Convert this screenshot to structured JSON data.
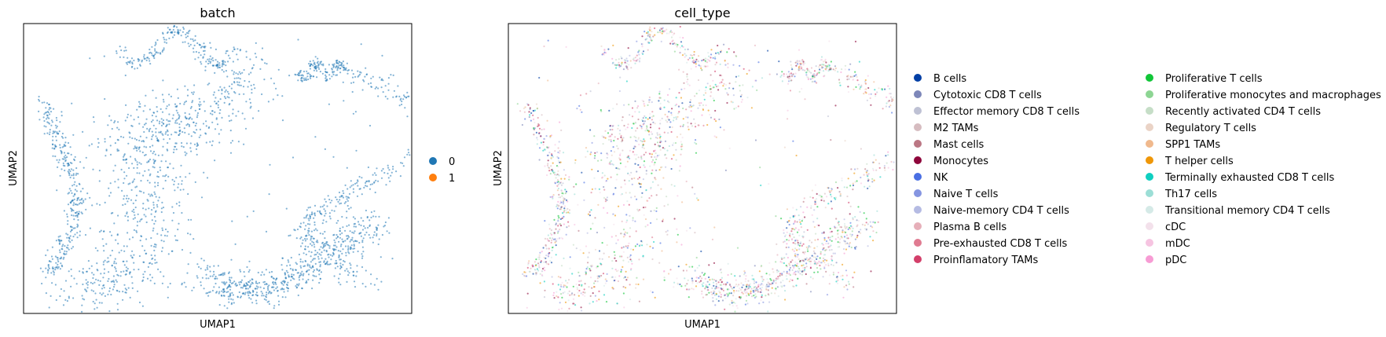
{
  "chart_data": [
    {
      "type": "scatter",
      "title": "batch",
      "xlabel": "UMAP1",
      "ylabel": "UMAP2",
      "grid": false,
      "legend_position": "right",
      "legend": [
        {
          "label": "0",
          "color": "#1f77b4"
        },
        {
          "label": "1",
          "color": "#ff7f0e"
        }
      ]
    },
    {
      "type": "scatter",
      "title": "cell_type",
      "xlabel": "UMAP1",
      "ylabel": "UMAP2",
      "grid": false,
      "legend_position": "right",
      "legend": [
        {
          "label": "B cells",
          "color": "#023fa5"
        },
        {
          "label": "Cytotoxic CD8 T cells",
          "color": "#7d87b9"
        },
        {
          "label": "Effector memory CD8 T cells",
          "color": "#bec1d4"
        },
        {
          "label": "M2 TAMs",
          "color": "#d6bcc0"
        },
        {
          "label": "Mast cells",
          "color": "#bb7784"
        },
        {
          "label": "Monocytes",
          "color": "#8e063b"
        },
        {
          "label": "NK",
          "color": "#4a6fe3"
        },
        {
          "label": "Naive T cells",
          "color": "#8595e1"
        },
        {
          "label": "Naive-memory CD4 T cells",
          "color": "#b5bbe3"
        },
        {
          "label": "Plasma B cells",
          "color": "#e6afb9"
        },
        {
          "label": "Pre-exhausted CD8 T cells",
          "color": "#e07b91"
        },
        {
          "label": "Proinflamatory TAMs",
          "color": "#d33f6a"
        },
        {
          "label": "Proliferative T cells",
          "color": "#11c638"
        },
        {
          "label": "Proliferative monocytes and macrophages",
          "color": "#8dd593"
        },
        {
          "label": "Recently activated CD4 T cells",
          "color": "#c6dec7"
        },
        {
          "label": "Regulatory T cells",
          "color": "#ead3c6"
        },
        {
          "label": "SPP1 TAMs",
          "color": "#f0b98d"
        },
        {
          "label": "T helper cells",
          "color": "#ef9708"
        },
        {
          "label": "Terminally exhausted CD8 T cells",
          "color": "#0fcfc0"
        },
        {
          "label": "Th17 cells",
          "color": "#9cded6"
        },
        {
          "label": "Transitional memory CD4 T cells",
          "color": "#d5eae7"
        },
        {
          "label": "cDC",
          "color": "#f3e1eb"
        },
        {
          "label": "mDC",
          "color": "#f6c4e1"
        },
        {
          "label": "pDC",
          "color": "#f79cd4"
        }
      ]
    }
  ]
}
